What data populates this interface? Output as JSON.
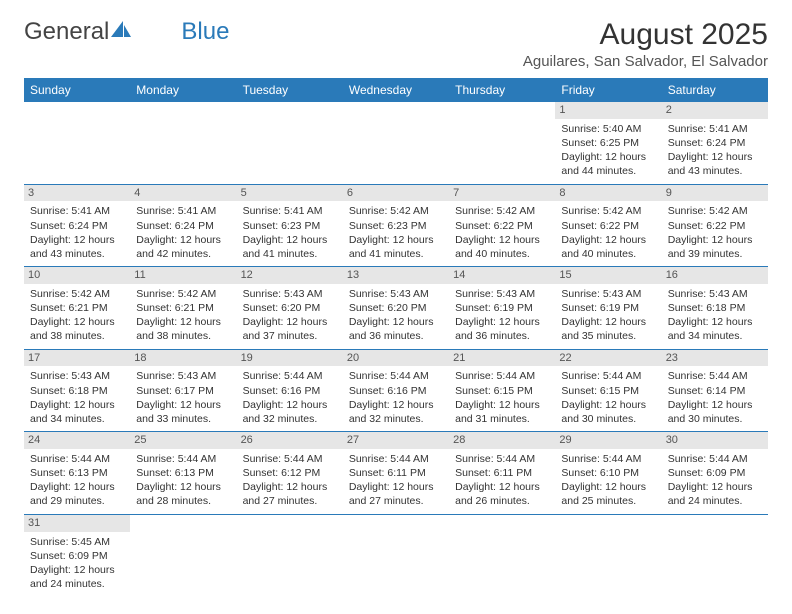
{
  "brand": {
    "part1": "General",
    "part2": "Blue"
  },
  "title": "August 2025",
  "subtitle": "Aguilares, San Salvador, El Salvador",
  "colors": {
    "accent": "#2a7ab9",
    "daynum_bg": "#e6e6e6",
    "text": "#333333",
    "background": "#ffffff"
  },
  "day_names": [
    "Sunday",
    "Monday",
    "Tuesday",
    "Wednesday",
    "Thursday",
    "Friday",
    "Saturday"
  ],
  "weeks": [
    [
      null,
      null,
      null,
      null,
      null,
      {
        "n": "1",
        "sunrise": "Sunrise: 5:40 AM",
        "sunset": "Sunset: 6:25 PM",
        "day1": "Daylight: 12 hours",
        "day2": "and 44 minutes."
      },
      {
        "n": "2",
        "sunrise": "Sunrise: 5:41 AM",
        "sunset": "Sunset: 6:24 PM",
        "day1": "Daylight: 12 hours",
        "day2": "and 43 minutes."
      }
    ],
    [
      {
        "n": "3",
        "sunrise": "Sunrise: 5:41 AM",
        "sunset": "Sunset: 6:24 PM",
        "day1": "Daylight: 12 hours",
        "day2": "and 43 minutes."
      },
      {
        "n": "4",
        "sunrise": "Sunrise: 5:41 AM",
        "sunset": "Sunset: 6:24 PM",
        "day1": "Daylight: 12 hours",
        "day2": "and 42 minutes."
      },
      {
        "n": "5",
        "sunrise": "Sunrise: 5:41 AM",
        "sunset": "Sunset: 6:23 PM",
        "day1": "Daylight: 12 hours",
        "day2": "and 41 minutes."
      },
      {
        "n": "6",
        "sunrise": "Sunrise: 5:42 AM",
        "sunset": "Sunset: 6:23 PM",
        "day1": "Daylight: 12 hours",
        "day2": "and 41 minutes."
      },
      {
        "n": "7",
        "sunrise": "Sunrise: 5:42 AM",
        "sunset": "Sunset: 6:22 PM",
        "day1": "Daylight: 12 hours",
        "day2": "and 40 minutes."
      },
      {
        "n": "8",
        "sunrise": "Sunrise: 5:42 AM",
        "sunset": "Sunset: 6:22 PM",
        "day1": "Daylight: 12 hours",
        "day2": "and 40 minutes."
      },
      {
        "n": "9",
        "sunrise": "Sunrise: 5:42 AM",
        "sunset": "Sunset: 6:22 PM",
        "day1": "Daylight: 12 hours",
        "day2": "and 39 minutes."
      }
    ],
    [
      {
        "n": "10",
        "sunrise": "Sunrise: 5:42 AM",
        "sunset": "Sunset: 6:21 PM",
        "day1": "Daylight: 12 hours",
        "day2": "and 38 minutes."
      },
      {
        "n": "11",
        "sunrise": "Sunrise: 5:42 AM",
        "sunset": "Sunset: 6:21 PM",
        "day1": "Daylight: 12 hours",
        "day2": "and 38 minutes."
      },
      {
        "n": "12",
        "sunrise": "Sunrise: 5:43 AM",
        "sunset": "Sunset: 6:20 PM",
        "day1": "Daylight: 12 hours",
        "day2": "and 37 minutes."
      },
      {
        "n": "13",
        "sunrise": "Sunrise: 5:43 AM",
        "sunset": "Sunset: 6:20 PM",
        "day1": "Daylight: 12 hours",
        "day2": "and 36 minutes."
      },
      {
        "n": "14",
        "sunrise": "Sunrise: 5:43 AM",
        "sunset": "Sunset: 6:19 PM",
        "day1": "Daylight: 12 hours",
        "day2": "and 36 minutes."
      },
      {
        "n": "15",
        "sunrise": "Sunrise: 5:43 AM",
        "sunset": "Sunset: 6:19 PM",
        "day1": "Daylight: 12 hours",
        "day2": "and 35 minutes."
      },
      {
        "n": "16",
        "sunrise": "Sunrise: 5:43 AM",
        "sunset": "Sunset: 6:18 PM",
        "day1": "Daylight: 12 hours",
        "day2": "and 34 minutes."
      }
    ],
    [
      {
        "n": "17",
        "sunrise": "Sunrise: 5:43 AM",
        "sunset": "Sunset: 6:18 PM",
        "day1": "Daylight: 12 hours",
        "day2": "and 34 minutes."
      },
      {
        "n": "18",
        "sunrise": "Sunrise: 5:43 AM",
        "sunset": "Sunset: 6:17 PM",
        "day1": "Daylight: 12 hours",
        "day2": "and 33 minutes."
      },
      {
        "n": "19",
        "sunrise": "Sunrise: 5:44 AM",
        "sunset": "Sunset: 6:16 PM",
        "day1": "Daylight: 12 hours",
        "day2": "and 32 minutes."
      },
      {
        "n": "20",
        "sunrise": "Sunrise: 5:44 AM",
        "sunset": "Sunset: 6:16 PM",
        "day1": "Daylight: 12 hours",
        "day2": "and 32 minutes."
      },
      {
        "n": "21",
        "sunrise": "Sunrise: 5:44 AM",
        "sunset": "Sunset: 6:15 PM",
        "day1": "Daylight: 12 hours",
        "day2": "and 31 minutes."
      },
      {
        "n": "22",
        "sunrise": "Sunrise: 5:44 AM",
        "sunset": "Sunset: 6:15 PM",
        "day1": "Daylight: 12 hours",
        "day2": "and 30 minutes."
      },
      {
        "n": "23",
        "sunrise": "Sunrise: 5:44 AM",
        "sunset": "Sunset: 6:14 PM",
        "day1": "Daylight: 12 hours",
        "day2": "and 30 minutes."
      }
    ],
    [
      {
        "n": "24",
        "sunrise": "Sunrise: 5:44 AM",
        "sunset": "Sunset: 6:13 PM",
        "day1": "Daylight: 12 hours",
        "day2": "and 29 minutes."
      },
      {
        "n": "25",
        "sunrise": "Sunrise: 5:44 AM",
        "sunset": "Sunset: 6:13 PM",
        "day1": "Daylight: 12 hours",
        "day2": "and 28 minutes."
      },
      {
        "n": "26",
        "sunrise": "Sunrise: 5:44 AM",
        "sunset": "Sunset: 6:12 PM",
        "day1": "Daylight: 12 hours",
        "day2": "and 27 minutes."
      },
      {
        "n": "27",
        "sunrise": "Sunrise: 5:44 AM",
        "sunset": "Sunset: 6:11 PM",
        "day1": "Daylight: 12 hours",
        "day2": "and 27 minutes."
      },
      {
        "n": "28",
        "sunrise": "Sunrise: 5:44 AM",
        "sunset": "Sunset: 6:11 PM",
        "day1": "Daylight: 12 hours",
        "day2": "and 26 minutes."
      },
      {
        "n": "29",
        "sunrise": "Sunrise: 5:44 AM",
        "sunset": "Sunset: 6:10 PM",
        "day1": "Daylight: 12 hours",
        "day2": "and 25 minutes."
      },
      {
        "n": "30",
        "sunrise": "Sunrise: 5:44 AM",
        "sunset": "Sunset: 6:09 PM",
        "day1": "Daylight: 12 hours",
        "day2": "and 24 minutes."
      }
    ],
    [
      {
        "n": "31",
        "sunrise": "Sunrise: 5:45 AM",
        "sunset": "Sunset: 6:09 PM",
        "day1": "Daylight: 12 hours",
        "day2": "and 24 minutes."
      },
      null,
      null,
      null,
      null,
      null,
      null
    ]
  ]
}
